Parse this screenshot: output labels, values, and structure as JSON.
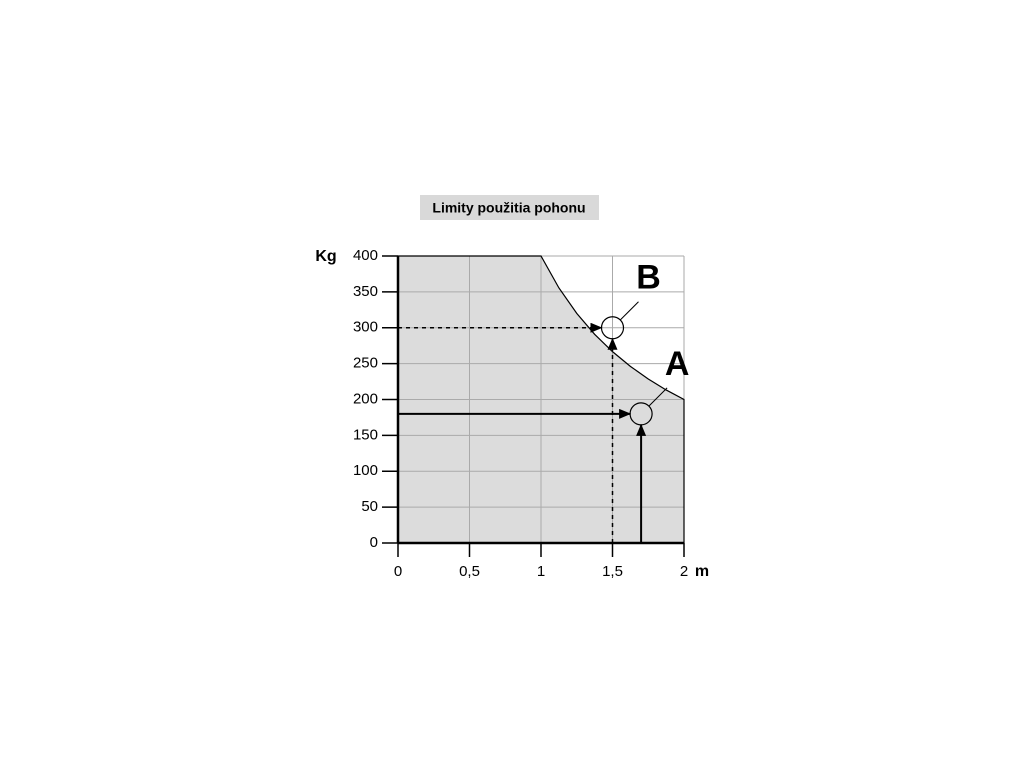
{
  "chart_data": {
    "type": "area",
    "title": "Limity použitia pohonu",
    "y_label": "Kg",
    "x_label": "m",
    "x": [
      0,
      1,
      1.125,
      1.25,
      1.375,
      1.5,
      1.625,
      1.75,
      1.875,
      2
    ],
    "values": [
      400,
      400,
      355.6,
      320,
      290.9,
      266.7,
      246.2,
      228.6,
      213.3,
      200
    ],
    "color": "#dcdcdc",
    "xlim": [
      0,
      2
    ],
    "ylim": [
      0,
      400
    ],
    "xticks": [
      0,
      {
        "value": 0.5,
        "label": "0,5"
      },
      1,
      {
        "value": 1.5,
        "label": "1,5"
      },
      2
    ],
    "yticks": [
      0,
      50,
      100,
      150,
      200,
      250,
      300,
      350,
      400
    ],
    "grid": true,
    "points": [
      {
        "label": "A",
        "x": 1.7,
        "y": 180,
        "dashed": false
      },
      {
        "label": "B",
        "x": 1.5,
        "y": 300,
        "dashed": true
      }
    ]
  }
}
